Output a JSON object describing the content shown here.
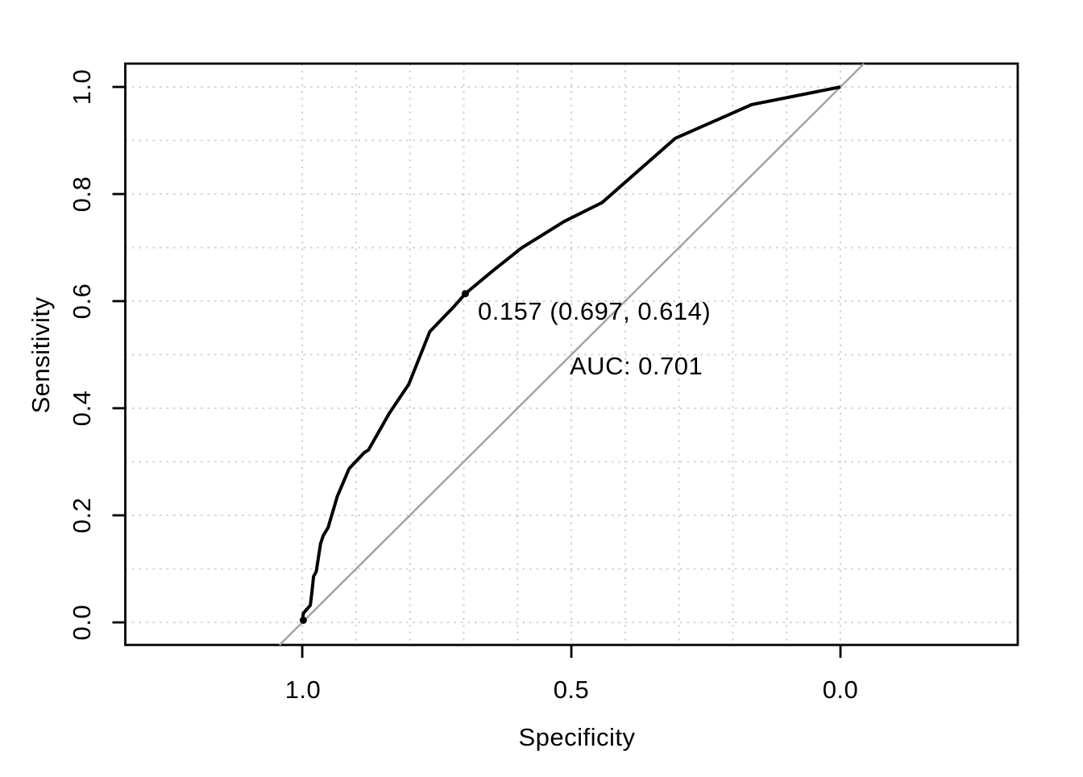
{
  "figure": {
    "background_color": "#FFFFFF",
    "plot_type_note": "ROC curve plot"
  },
  "chart_data": {
    "type": "line",
    "subtype": "roc_curve",
    "title": "",
    "xlabel": "Specificity",
    "ylabel": "Sensitivity",
    "x_axis": {
      "label": "Specificity",
      "tick_labels": [
        "1.0",
        "0.5",
        "0.0"
      ],
      "tick_values": [
        1.0,
        0.5,
        0.0
      ],
      "range": [
        1.0,
        0.0
      ],
      "reversed": true
    },
    "y_axis": {
      "label": "Sensitivity",
      "tick_labels": [
        "0.0",
        "0.2",
        "0.4",
        "0.6",
        "0.8",
        "1.0"
      ],
      "tick_values": [
        0.0,
        0.2,
        0.4,
        0.6,
        0.8,
        1.0
      ],
      "range": [
        0.0,
        1.0
      ]
    },
    "grid": {
      "visible": true,
      "style": "dotted",
      "step": 0.1,
      "color": "#D3D3D3"
    },
    "series": [
      {
        "name": "ROC curve",
        "color": "#000000",
        "line_width": 4,
        "points": [
          [
            1.0,
            0.0
          ],
          [
            0.998,
            0.017
          ],
          [
            0.985,
            0.032
          ],
          [
            0.982,
            0.057
          ],
          [
            0.979,
            0.086
          ],
          [
            0.974,
            0.095
          ],
          [
            0.966,
            0.147
          ],
          [
            0.961,
            0.162
          ],
          [
            0.952,
            0.177
          ],
          [
            0.935,
            0.235
          ],
          [
            0.913,
            0.287
          ],
          [
            0.885,
            0.317
          ],
          [
            0.877,
            0.322
          ],
          [
            0.838,
            0.391
          ],
          [
            0.802,
            0.445
          ],
          [
            0.763,
            0.543
          ],
          [
            0.718,
            0.59
          ],
          [
            0.697,
            0.614
          ],
          [
            0.648,
            0.655
          ],
          [
            0.593,
            0.699
          ],
          [
            0.513,
            0.749
          ],
          [
            0.443,
            0.784
          ],
          [
            0.307,
            0.904
          ],
          [
            0.165,
            0.967
          ],
          [
            0.0,
            1.0
          ]
        ]
      },
      {
        "name": "chance diagonal",
        "color": "#A3A3A3",
        "line_width": 2.5,
        "points": [
          [
            1.0,
            0.0
          ],
          [
            0.0,
            1.0
          ]
        ],
        "extends_to_plot_edges": true
      }
    ],
    "marked_points": [
      {
        "specificity": 0.998,
        "sensitivity": 0.004,
        "label": ""
      },
      {
        "specificity": 0.697,
        "sensitivity": 0.614,
        "threshold": 0.157,
        "label": "0.157 (0.697, 0.614)"
      }
    ],
    "annotations": [
      {
        "text": "AUC: 0.701",
        "auc": 0.701
      }
    ]
  }
}
